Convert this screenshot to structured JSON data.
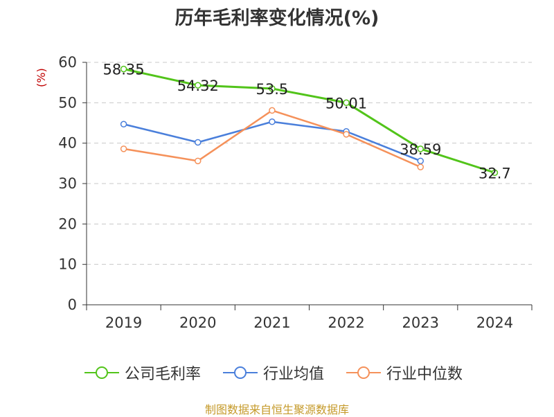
{
  "chart_data": {
    "type": "line",
    "title": "历年毛利率变化情况(%)",
    "ylabel": "(%)",
    "xlabel": "",
    "categories": [
      "2019",
      "2020",
      "2021",
      "2022",
      "2023",
      "2024"
    ],
    "ylim": [
      0,
      60
    ],
    "yticks": [
      0,
      10,
      20,
      30,
      40,
      50,
      60
    ],
    "grid": true,
    "legend": "bottom",
    "series": [
      {
        "name": "公司毛利率",
        "color": "#52c41a",
        "values": [
          58.35,
          54.32,
          53.5,
          50.01,
          38.59,
          32.7
        ],
        "labels": [
          "58.35",
          "54.32",
          "53.5",
          "50.01",
          "38.59",
          "32.7"
        ]
      },
      {
        "name": "行业均值",
        "color": "#4a7fdb",
        "values": [
          44.7,
          40.2,
          45.3,
          42.9,
          35.6,
          null
        ]
      },
      {
        "name": "行业中位数",
        "color": "#f5915a",
        "values": [
          38.6,
          35.6,
          48.1,
          42.2,
          34.1,
          null
        ]
      }
    ]
  },
  "footer": {
    "source": "制图数据来自恒生聚源数据库"
  }
}
